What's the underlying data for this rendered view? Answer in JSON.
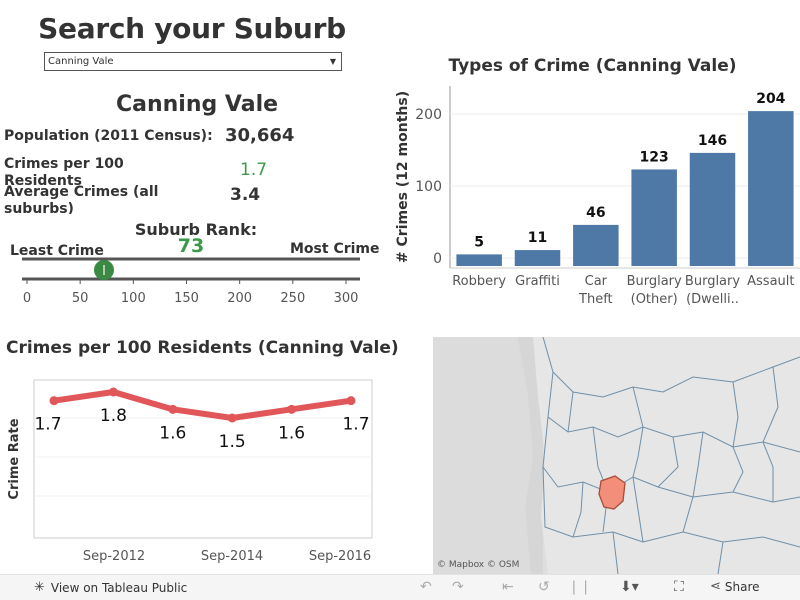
{
  "header": {
    "title": "Search your Suburb"
  },
  "search": {
    "selected": "Canning Vale"
  },
  "suburb": {
    "name": "Canning Vale",
    "population_label": "Population (2011 Census):",
    "population_value": "30,664",
    "crimes_per_100_label": "Crimes per 100 Residents",
    "crimes_per_100_value": "1.7",
    "avg_crimes_label": "Average Crimes (all suburbs)",
    "avg_crimes_value": "3.4"
  },
  "rank": {
    "title": "Suburb Rank:",
    "value": "73",
    "least_label": "Least Crime",
    "most_label": "Most Crime",
    "axis_ticks": [
      "0",
      "50",
      "100",
      "150",
      "200",
      "250",
      "300"
    ]
  },
  "colors": {
    "accent_green": "#3a9a4a",
    "bar_blue": "#4e79a7",
    "line_red": "#e15759",
    "map_highlight": "#f28e79"
  },
  "chart_data": [
    {
      "type": "bar",
      "title": "Types of Crime (Canning Vale)",
      "ylabel": "# Crimes (12 months)",
      "categories": [
        "Robbery",
        "Graffiti",
        "Car Theft",
        "Burglary (Other)",
        "Burglary (Dwelli..",
        "Assault"
      ],
      "category_lines": [
        [
          "Robbery"
        ],
        [
          "Graffiti"
        ],
        [
          "Car",
          "Theft"
        ],
        [
          "Burglary",
          "(Other)"
        ],
        [
          "Burglary",
          "(Dwelli.."
        ],
        [
          "Assault"
        ]
      ],
      "values": [
        5,
        11,
        46,
        123,
        146,
        204
      ],
      "yticks": [
        "0",
        "100",
        "200"
      ],
      "ylim": [
        0,
        225
      ]
    },
    {
      "type": "line",
      "title": "Crimes per 100 Residents (Canning Vale)",
      "ylabel": "Crime Rate",
      "xtick_labels": [
        "Sep-2012",
        "Sep-2014",
        "Sep-2016"
      ],
      "values": [
        1.7,
        1.8,
        1.6,
        1.5,
        1.6,
        1.7
      ],
      "labels": [
        "1.7",
        "1.8",
        "1.6",
        "1.5",
        "1.6",
        "1.7"
      ]
    }
  ],
  "map": {
    "attribution": "© Mapbox  © OSM"
  },
  "footer": {
    "view_label": "View on Tableau Public",
    "share_label": "Share"
  }
}
